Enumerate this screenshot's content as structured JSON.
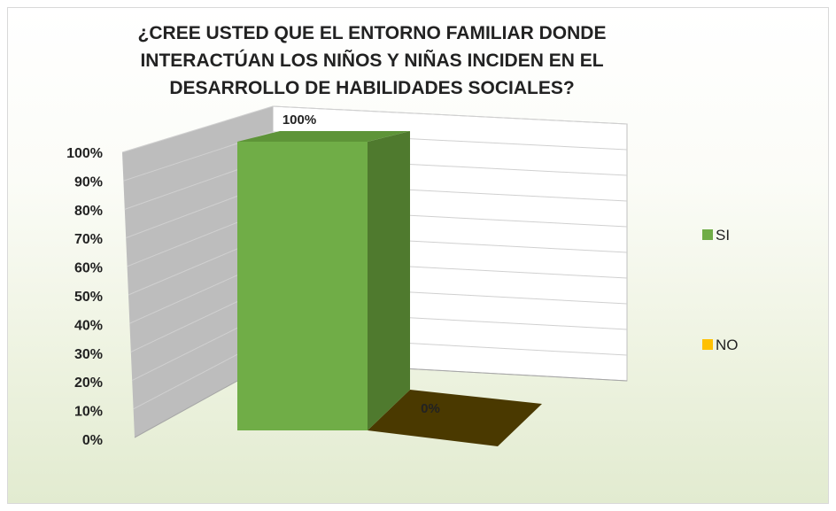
{
  "chart_data": {
    "type": "bar",
    "title": "¿CREE USTED QUE EL ENTORNO FAMILIAR DONDE INTERACTÚAN LOS NIÑOS Y NIÑAS  INCIDEN EN EL DESARROLLO DE HABILIDADES SOCIALES?",
    "categories": [
      "SI",
      "NO"
    ],
    "values": [
      100,
      0
    ],
    "data_labels": [
      "100%",
      "0%"
    ],
    "ylim": [
      0,
      100
    ],
    "y_ticks": [
      "0%",
      "10%",
      "20%",
      "30%",
      "40%",
      "50%",
      "60%",
      "70%",
      "80%",
      "90%",
      "100%"
    ],
    "style": "3d-column",
    "grid": true,
    "legend": {
      "placement": "right",
      "entries": [
        {
          "label": "SI",
          "color": "#70ad47"
        },
        {
          "label": "NO",
          "color": "#ffc000"
        }
      ]
    },
    "colors": {
      "si_front": "#70ad47",
      "si_side": "#4f7a2e",
      "si_top": "#5e9438",
      "no_floor": "#4a3900"
    }
  }
}
